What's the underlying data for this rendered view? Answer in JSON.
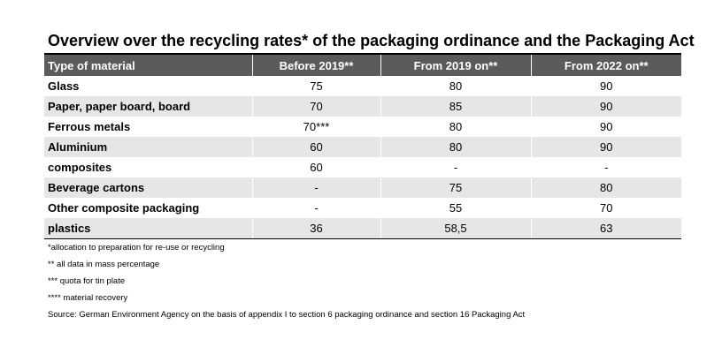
{
  "title": "Overview over the recycling rates* of the packaging ordinance and the Packaging Act",
  "table": {
    "headers": [
      "Type of material",
      "Before 2019**",
      "From 2019 on**",
      "From 2022 on**"
    ],
    "rows": [
      [
        "Glass",
        "75",
        "80",
        "90"
      ],
      [
        "Paper, paper board, board",
        "70",
        "85",
        "90"
      ],
      [
        "Ferrous metals",
        "70***",
        "80",
        "90"
      ],
      [
        "Aluminium",
        "60",
        "80",
        "90"
      ],
      [
        "composites",
        "60",
        "-",
        "-"
      ],
      [
        "Beverage cartons",
        "-",
        "75",
        "80"
      ],
      [
        "Other composite packaging",
        "-",
        "55",
        "70"
      ],
      [
        "plastics",
        "36",
        "58,5",
        "63"
      ]
    ]
  },
  "notes": [
    "*allocation to preparation for re-use or recycling",
    "** all data in mass percentage",
    "*** quota for tin plate",
    "**** material recovery",
    "Source: German Environment Agency on the basis of appendix I to section 6 packaging ordinance and section 16 Packaging Act"
  ],
  "colors": {
    "header_bg": "#5b5b5b",
    "stripe_bg": "#e6e6e6"
  }
}
